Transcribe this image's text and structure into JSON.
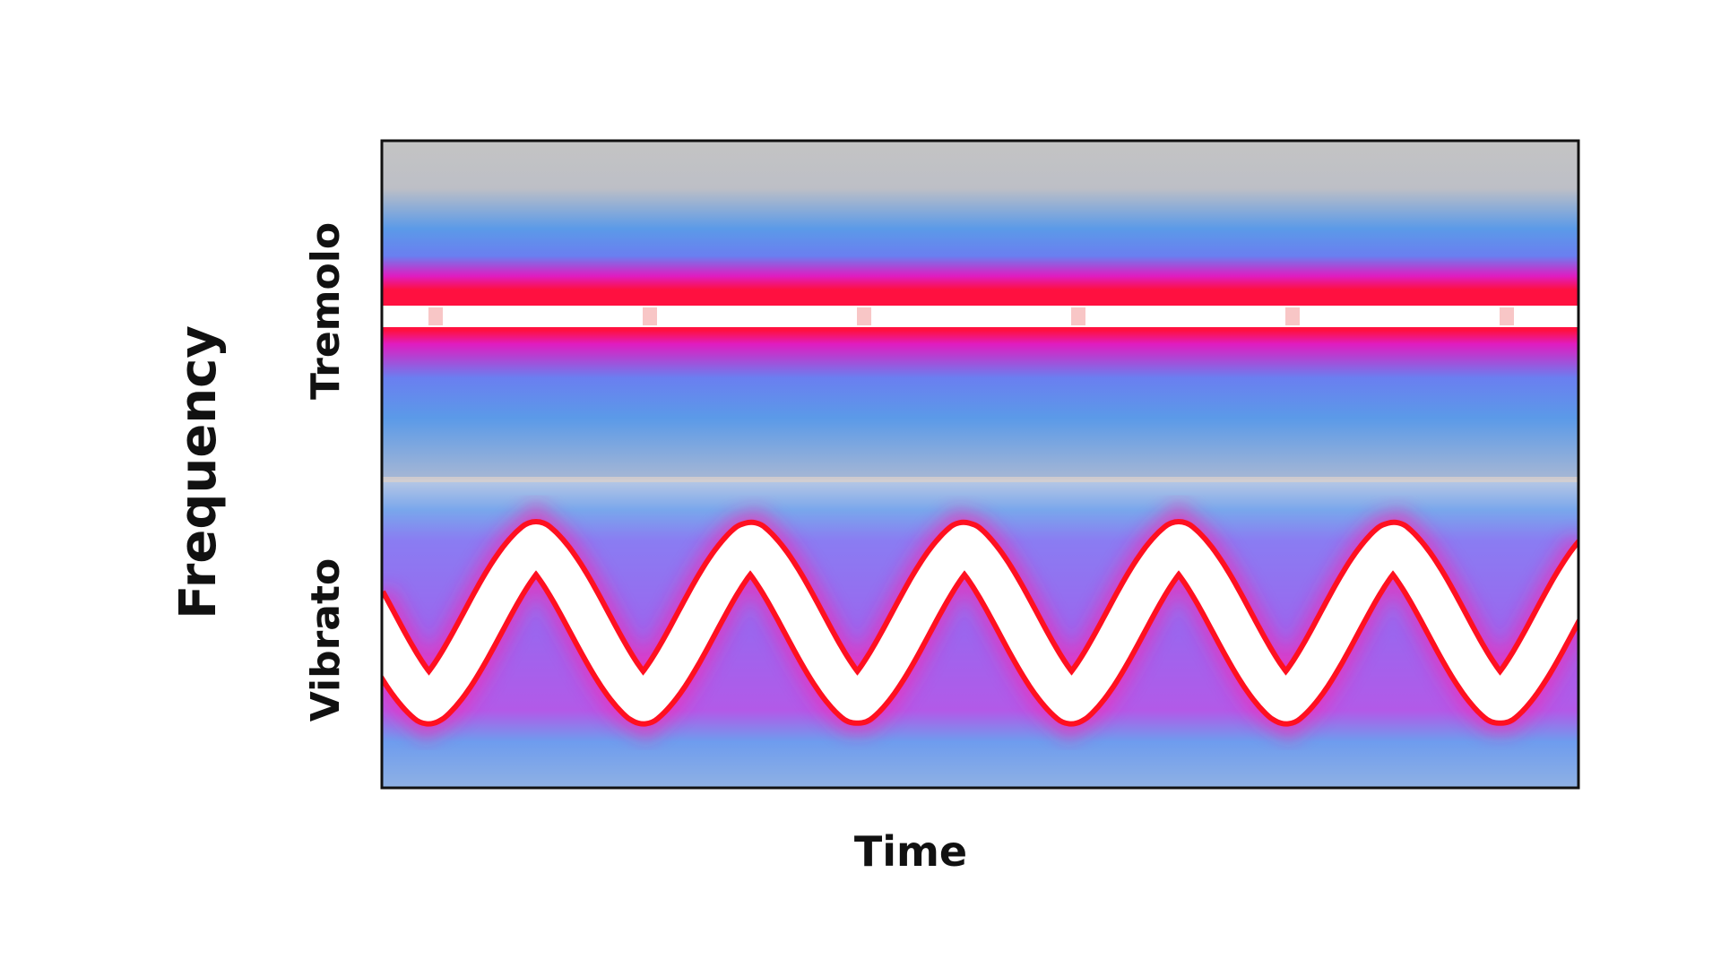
{
  "axes": {
    "x_label": "Time",
    "y_label": "Frequency"
  },
  "bands": {
    "upper": "Tremolo",
    "lower": "Vibrato"
  }
}
